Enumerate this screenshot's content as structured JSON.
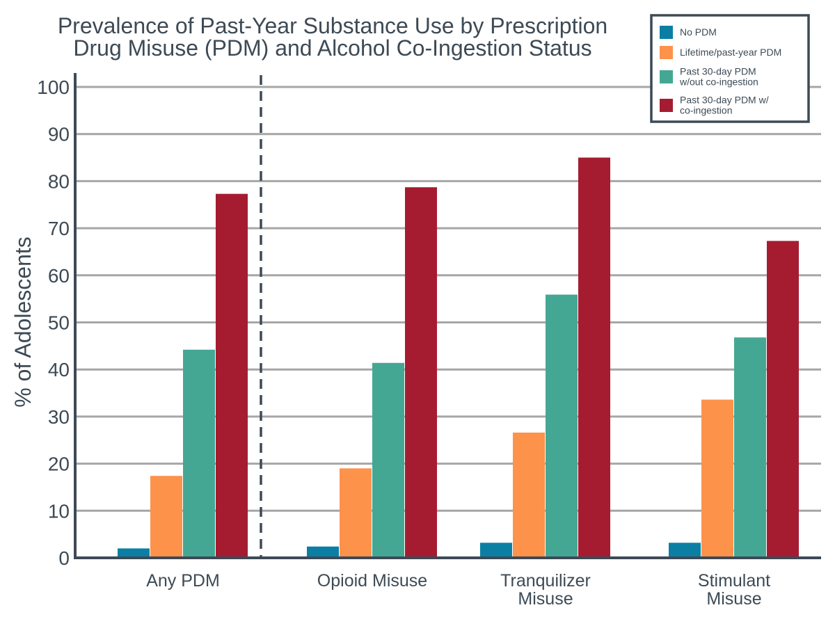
{
  "chart_data": {
    "type": "bar",
    "title_lines": [
      "Prevalence of Past-Year Substance Use by Prescription",
      "Drug Misuse (PDM) and Alcohol Co-Ingestion Status"
    ],
    "xlabel": "",
    "ylabel": "% of Adolescents",
    "ylim": [
      0,
      100
    ],
    "yticks": [
      "0",
      "10",
      "20",
      "30",
      "40",
      "50",
      "60",
      "70",
      "80",
      "90",
      "100"
    ],
    "categories": [
      [
        "Any PDM"
      ],
      [
        "Opioid Misuse"
      ],
      [
        "Tranquilizer",
        "Misuse"
      ],
      [
        "Stimulant",
        "Misuse"
      ]
    ],
    "series": [
      {
        "name": "No PDM",
        "legend_lines": [
          "No PDM"
        ],
        "color": "#0b7fa3",
        "values": [
          2.0,
          2.4,
          3.2,
          3.2
        ]
      },
      {
        "name": "Lifetime/past-year PDM",
        "legend_lines": [
          "Lifetime/past-year PDM"
        ],
        "color": "#fd924b",
        "values": [
          17.4,
          19.0,
          26.6,
          33.6
        ]
      },
      {
        "name": "Past 30-day PDM w/out co-ingestion",
        "legend_lines": [
          "Past 30-day PDM",
          "w/out co-ingestion"
        ],
        "color": "#44a794",
        "values": [
          44.2,
          41.4,
          55.9,
          46.8
        ]
      },
      {
        "name": "Past 30-day PDM w/ co-ingestion",
        "legend_lines": [
          "Past 30-day PDM w/",
          "co-ingestion"
        ],
        "color": "#a51c30",
        "values": [
          77.3,
          78.7,
          85.0,
          67.3
        ]
      }
    ],
    "grid": true,
    "legend_position": "top-right",
    "divider": "dashed line after first category"
  },
  "colors": {
    "axis": "#3d4a55",
    "grid": "#a6a6a6",
    "text": "#3d4a55"
  }
}
